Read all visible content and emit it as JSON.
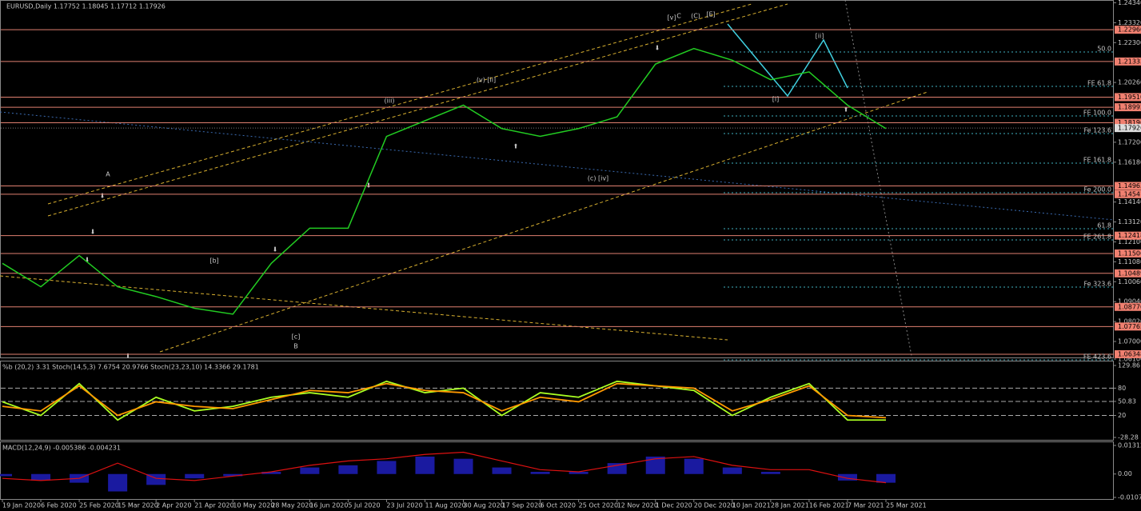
{
  "chart_data": [
    {
      "type": "line",
      "title": "EURUSD,Daily 1.17752 1.18045 1.17712 1.17926",
      "categories": [
        "19 Jan 2020",
        "6 Feb 2020",
        "25 Feb 2020",
        "15 Mar 2020",
        "2 Apr 2020",
        "21 Apr 2020",
        "10 May 2020",
        "28 May 2020",
        "16 Jun 2020",
        "5 Jul 2020",
        "23 Jul 2020",
        "11 Aug 2020",
        "30 Aug 2020",
        "17 Sep 2020",
        "6 Oct 2020",
        "25 Oct 2020",
        "12 Nov 2020",
        "1 Dec 2020",
        "20 Dec 2020",
        "10 Jan 2021",
        "28 Jan 2021",
        "16 Feb 2021",
        "7 Mar 2021",
        "25 Mar 2021"
      ],
      "series": [
        {
          "name": "EURUSD",
          "color": "#22cc22",
          "values": [
            1.11,
            1.098,
            1.114,
            1.098,
            1.093,
            1.087,
            1.084,
            1.11,
            1.128,
            1.128,
            1.175,
            1.183,
            1.191,
            1.179,
            1.175,
            1.179,
            1.185,
            1.212,
            1.22,
            1.214,
            1.204,
            1.208,
            1.191,
            1.179
          ]
        }
      ],
      "ylim": [
        1.061,
        1.244
      ],
      "yticks": [
        {
          "value": 1.2434,
          "label": "1.24340"
        },
        {
          "value": 1.2332,
          "label": "1.23320"
        },
        {
          "value": 1.223,
          "label": "1.22300"
        },
        {
          "value": 1.2026,
          "label": "1.20260"
        },
        {
          "value": 1.172,
          "label": "1.17200"
        },
        {
          "value": 1.1618,
          "label": "1.16180"
        },
        {
          "value": 1.1414,
          "label": "1.14140"
        },
        {
          "value": 1.1312,
          "label": "1.13120"
        },
        {
          "value": 1.121,
          "label": "1.12100"
        },
        {
          "value": 1.1108,
          "label": "1.11080"
        },
        {
          "value": 1.1006,
          "label": "1.10060"
        },
        {
          "value": 1.0904,
          "label": "1.09040"
        },
        {
          "value": 1.0802,
          "label": "1.08020"
        },
        {
          "value": 1.07,
          "label": "1.07000"
        },
        {
          "value": 1.061,
          "label": "1.06100"
        }
      ],
      "levels": [
        {
          "value": 1.2296,
          "label": "1.22960"
        },
        {
          "value": 1.21333,
          "label": "1.21333"
        },
        {
          "value": 1.1951,
          "label": "1.19510"
        },
        {
          "value": 1.18992,
          "label": "1.18992"
        },
        {
          "value": 1.18196,
          "label": "1.18196"
        },
        {
          "value": 1.14963,
          "label": "1.14963"
        },
        {
          "value": 1.14541,
          "label": "1.14541"
        },
        {
          "value": 1.12418,
          "label": "1.12418"
        },
        {
          "value": 1.11506,
          "label": "1.11506"
        },
        {
          "value": 1.10489,
          "label": "1.10489"
        },
        {
          "value": 1.0877,
          "label": "1.08770"
        },
        {
          "value": 1.07765,
          "label": "1.07765"
        },
        {
          "value": 1.06348,
          "label": "1.06348"
        }
      ],
      "current": {
        "value": 1.17926,
        "label": "1.17926"
      },
      "fib_labels": [
        "50.0",
        "FE 61.8",
        "FE 100.0",
        "Fe 123.6",
        "FE 161.8",
        "Fe 200.0",
        "61.8",
        "FE 261.8",
        "Fe 323.6",
        "FE 423.6"
      ],
      "annotations": [
        "C",
        "(C)",
        "[E]",
        "[v]",
        "A",
        "B",
        "[ii]",
        "[i]",
        "(v) [ii]",
        "(iii)",
        "[c]",
        "[b]",
        "(c) [iv]"
      ]
    },
    {
      "type": "line",
      "title": "%b (20,2) 3.31 Stoch(14,5,3) 7.6754 20.9766 Stoch(23,23,10) 14.3366 29.1781",
      "series": [
        {
          "name": "Stoch(14,5,3)",
          "color": "#aaff22",
          "values": [
            50,
            20,
            90,
            10,
            60,
            30,
            40,
            60,
            70,
            60,
            95,
            70,
            80,
            20,
            70,
            60,
            95,
            85,
            75,
            20,
            60,
            90,
            10,
            10
          ]
        },
        {
          "name": "Stoch(23,23,10)",
          "color": "#ff9900",
          "values": [
            40,
            30,
            85,
            20,
            50,
            40,
            35,
            55,
            75,
            70,
            90,
            75,
            70,
            30,
            60,
            50,
            90,
            85,
            80,
            30,
            55,
            85,
            20,
            15
          ]
        }
      ],
      "ylim": [
        -28.28,
        129.86
      ],
      "yticks": [
        129.86,
        80,
        50.83,
        20,
        -28.28
      ]
    },
    {
      "type": "bar",
      "title": "MACD(12,24,9) -0.005386 -0.004231",
      "values": [
        -0.001,
        -0.003,
        -0.004,
        -0.008,
        -0.005,
        -0.002,
        -0.001,
        0.001,
        0.003,
        0.004,
        0.006,
        0.008,
        0.007,
        0.003,
        0.001,
        0.001,
        0.005,
        0.008,
        0.007,
        0.003,
        0.001,
        0.0,
        -0.003,
        -0.004
      ],
      "signal": [
        -0.002,
        -0.003,
        -0.002,
        0.005,
        -0.002,
        -0.003,
        -0.001,
        0.001,
        0.004,
        0.006,
        0.007,
        0.009,
        0.01,
        0.006,
        0.002,
        0.001,
        0.004,
        0.007,
        0.008,
        0.004,
        0.002,
        0.002,
        -0.002,
        -0.004
      ],
      "color": "#1a1aa0",
      "signal_color": "#dd1111",
      "ylim": [
        -0.010749,
        0.013129
      ],
      "yticks": [
        0.013129,
        {
          "value": 0,
          "label": "0.00"
        },
        -0.010749
      ]
    }
  ]
}
